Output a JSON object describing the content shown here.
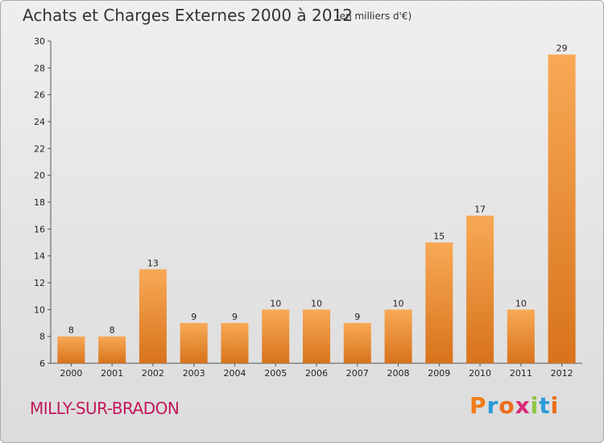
{
  "header": {
    "title": "Achats et Charges Externes 2000 à 2012",
    "unit": "(en milliers d'€)"
  },
  "footer": {
    "place": "MILLY-SUR-BRADON",
    "logo": "Proxiti",
    "logo_colors": [
      "#f07d1a",
      "#2a9bd8",
      "#ec6d1a",
      "#d92a7a",
      "#8cc63f",
      "#2a9bd8",
      "#ec6d1a"
    ]
  },
  "colors": {
    "bar_light": "#f8a955",
    "bar_dark": "#d8731c",
    "place": "#c2185b"
  },
  "chart_data": {
    "type": "bar",
    "title": "Achats et Charges Externes 2000 à 2012",
    "categories": [
      "2000",
      "2001",
      "2002",
      "2003",
      "2004",
      "2005",
      "2006",
      "2007",
      "2008",
      "2009",
      "2010",
      "2011",
      "2012"
    ],
    "values": [
      8,
      8,
      13,
      9,
      9,
      10,
      10,
      9,
      10,
      15,
      17,
      10,
      29
    ],
    "ylim": [
      6,
      30
    ],
    "yticks": [
      6,
      8,
      10,
      12,
      14,
      16,
      18,
      20,
      22,
      24,
      26,
      28,
      30
    ],
    "grid": false,
    "legend": "none"
  }
}
